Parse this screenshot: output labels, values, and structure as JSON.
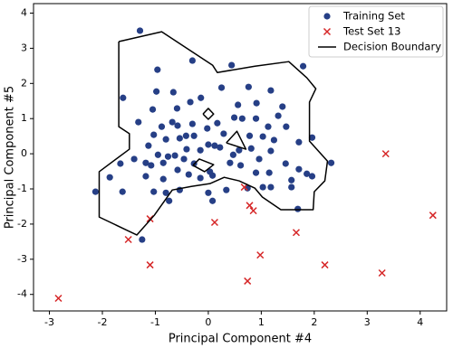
{
  "chart_data": {
    "type": "scatter",
    "xlabel": "Principal Component #4",
    "ylabel": "Principal Component #5",
    "xlim": [
      -3.3,
      4.5
    ],
    "ylim": [
      -4.47,
      4.27
    ],
    "xticks": [
      -3,
      -2,
      -1,
      0,
      1,
      2,
      3,
      4
    ],
    "yticks": [
      -4,
      -3,
      -2,
      -1,
      0,
      1,
      2,
      3,
      4
    ],
    "legend": "upper right",
    "series": [
      {
        "name": "Training Set",
        "color": "#263f86",
        "marker": "o",
        "x": [
          -1.29,
          -1.61,
          -0.96,
          -0.3,
          0.44,
          1.79,
          -0.66,
          -0.98,
          -1.05,
          -1.32,
          -0.59,
          -0.34,
          -0.14,
          0.25,
          0.56,
          0.49,
          0.64,
          0.91,
          0.9,
          1.13,
          1.4,
          1.47,
          0.17,
          -0.02,
          -0.3,
          -0.58,
          -0.88,
          -1.03,
          -0.8,
          -0.54,
          -0.42,
          -0.27,
          0.0,
          0.12,
          0.29,
          0.78,
          1.03,
          1.24,
          1.71,
          1.96,
          2.32,
          -1.13,
          -0.95,
          -0.76,
          -0.63,
          -0.46,
          -0.41,
          -0.15,
          0.22,
          0.47,
          0.81,
          0.96,
          1.18,
          1.46,
          1.71,
          1.96,
          -1.86,
          -1.66,
          -1.4,
          -1.18,
          -1.08,
          -0.85,
          -0.58,
          -0.37,
          -0.15,
          0.08,
          0.41,
          0.61,
          0.9,
          1.15,
          1.57,
          1.86,
          -2.13,
          -1.62,
          -1.18,
          -1.03,
          -0.8,
          -0.54,
          0.0,
          0.34,
          0.74,
          1.03,
          1.18,
          1.57,
          1.69,
          -0.74,
          0.08,
          0.03,
          -0.68,
          0.76,
          1.18,
          0.58,
          -0.27,
          -0.85,
          1.32,
          -1.25
        ],
        "y": [
          3.5,
          1.59,
          2.39,
          2.65,
          2.52,
          2.49,
          1.75,
          1.77,
          1.26,
          0.9,
          1.29,
          1.47,
          1.59,
          1.88,
          1.39,
          1.03,
          1.0,
          1.44,
          1.0,
          0.77,
          1.34,
          0.77,
          0.87,
          0.72,
          0.85,
          0.8,
          0.77,
          0.54,
          0.41,
          0.44,
          0.51,
          0.51,
          0.26,
          0.23,
          0.57,
          0.51,
          0.49,
          0.39,
          0.33,
          0.46,
          -0.26,
          0.23,
          -0.03,
          -0.08,
          -0.05,
          -0.15,
          0.13,
          0.1,
          0.18,
          -0.03,
          0.15,
          -0.15,
          0.08,
          -0.28,
          -0.44,
          -0.64,
          -0.67,
          -0.28,
          -0.15,
          -0.26,
          -0.33,
          -0.26,
          -0.46,
          -0.59,
          -0.69,
          -0.62,
          -0.26,
          -0.33,
          -0.54,
          -0.54,
          -0.75,
          -0.57,
          -1.08,
          -1.08,
          -0.64,
          -1.08,
          -1.11,
          -1.03,
          -1.11,
          -1.03,
          -0.98,
          -0.95,
          -0.95,
          -0.95,
          -1.57,
          -1.34,
          -1.34,
          -0.51,
          0.9,
          1.9,
          1.8,
          0.1,
          -0.28,
          -0.72,
          1.08,
          -2.44
        ]
      },
      {
        "name": "Test Set 13",
        "color": "#d62728",
        "marker": "x",
        "x": [
          -2.83,
          -1.51,
          -1.1,
          -1.1,
          0.12,
          0.68,
          0.78,
          0.85,
          0.98,
          0.74,
          1.66,
          2.2,
          3.35,
          3.28,
          4.24
        ],
        "y": [
          -4.11,
          -2.44,
          -1.85,
          -3.16,
          -1.95,
          -0.95,
          -1.47,
          -1.62,
          -2.88,
          -3.62,
          -2.24,
          -3.16,
          0.0,
          -3.39,
          -1.75
        ]
      },
      {
        "name": "Decision Boundary",
        "color": "#000000",
        "type": "line",
        "x": [
          -1.69,
          -0.88,
          0.08,
          0.17,
          0.88,
          1.52,
          1.86,
          2.03,
          1.91,
          1.91,
          2.25,
          2.2,
          2.0,
          1.98,
          1.37,
          1.02,
          0.88,
          0.58,
          0.3,
          0.03,
          -0.32,
          -0.68,
          -1.02,
          -1.35,
          -2.06,
          -2.06,
          -1.49,
          -1.49,
          -1.69,
          -1.69,
          null,
          -0.1,
          0.0,
          0.1,
          0.0,
          -0.1,
          null,
          0.34,
          0.54,
          0.71,
          0.34,
          null,
          -0.29,
          -0.17,
          0.1,
          -0.07,
          -0.29
        ],
        "y": [
          3.19,
          3.47,
          2.52,
          2.31,
          2.49,
          2.62,
          2.16,
          1.85,
          1.47,
          0.36,
          -0.21,
          -0.77,
          -1.08,
          -1.59,
          -1.59,
          -1.23,
          -0.98,
          -0.77,
          -0.67,
          -0.85,
          -0.93,
          -1.03,
          -1.75,
          -2.31,
          -1.8,
          -0.51,
          0.13,
          0.57,
          0.77,
          3.19,
          null,
          1.13,
          1.29,
          1.13,
          0.98,
          1.13,
          null,
          0.31,
          0.64,
          0.13,
          0.31,
          null,
          -0.33,
          -0.15,
          -0.31,
          -0.51,
          -0.33
        ]
      }
    ]
  }
}
